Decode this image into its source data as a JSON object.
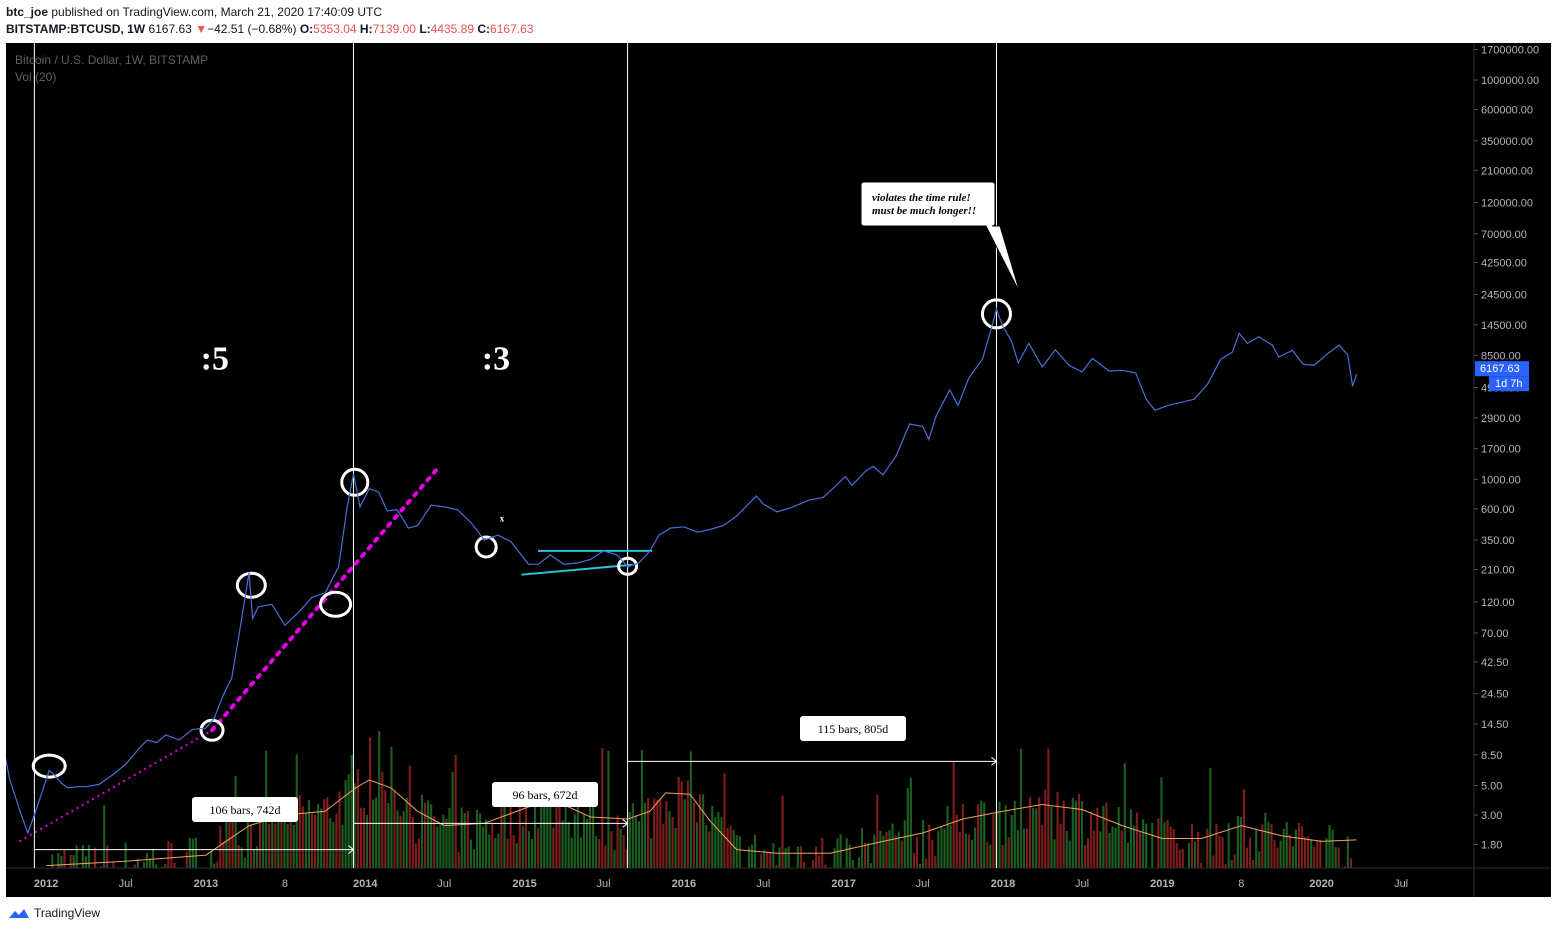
{
  "header": {
    "author": "btc_joe",
    "published": "published on TradingView.com, March 21, 2020 17:40:09 UTC",
    "symbol": "BITSTAMP:BTCUSD, 1W",
    "last": "6167.63",
    "change": "−42.51 (−0.68%)",
    "o_label": "O:",
    "o": "5353.04",
    "h_label": "H:",
    "h": "7139.00",
    "l_label": "L:",
    "l": "4435.89",
    "c_label": "C:",
    "c": "6167.63",
    "down_arrow": "▼"
  },
  "pane": {
    "title": "Bitcoin / U.S. Dollar, 1W, BITSTAMP",
    "vol_label": "Vol (20)"
  },
  "footer": {
    "brand": "TradingView"
  },
  "colors": {
    "price_line": "#4a6fd4",
    "volume_up": "#1b5e20",
    "volume_down": "#7f1d1d",
    "volume_ma": "#f0a060",
    "trend_dotted": "#e600e6",
    "channel": "#29c5d9",
    "annotation": "#ffffff",
    "price_tag": "#2962ff"
  },
  "chart_data": {
    "type": "line",
    "title": "Bitcoin / U.S. Dollar, 1W, BITSTAMP",
    "yscale": "log",
    "ylim": [
      1.2,
      1900000
    ],
    "xlim": [
      "2011-10-01",
      "2020-12-15"
    ],
    "y_ticks": [
      "1700000.00",
      "1000000.00",
      "600000.00",
      "350000.00",
      "210000.00",
      "120000.00",
      "70000.00",
      "42500.00",
      "24500.00",
      "14500.00",
      "8500.00",
      "4900.00",
      "2900.00",
      "1700.00",
      "1000.00",
      "600.00",
      "350.00",
      "210.00",
      "120.00",
      "70.00",
      "42.50",
      "24.50",
      "14.50",
      "8.50",
      "5.00",
      "3.00",
      "1.80"
    ],
    "x_ticks": [
      {
        "label": "2012",
        "date": "2012-01-01",
        "bold": true
      },
      {
        "label": "Jul",
        "date": "2012-07-01",
        "bold": false
      },
      {
        "label": "2013",
        "date": "2013-01-01",
        "bold": true
      },
      {
        "label": "8",
        "date": "2013-07-01",
        "bold": false
      },
      {
        "label": "2014",
        "date": "2014-01-01",
        "bold": true
      },
      {
        "label": "Jul",
        "date": "2014-07-01",
        "bold": false
      },
      {
        "label": "2015",
        "date": "2015-01-01",
        "bold": true
      },
      {
        "label": "Jul",
        "date": "2015-07-01",
        "bold": false
      },
      {
        "label": "2016",
        "date": "2016-01-01",
        "bold": true
      },
      {
        "label": "Jul",
        "date": "2016-07-01",
        "bold": false
      },
      {
        "label": "2017",
        "date": "2017-01-01",
        "bold": true
      },
      {
        "label": "Jul",
        "date": "2017-07-01",
        "bold": false
      },
      {
        "label": "2018",
        "date": "2018-01-01",
        "bold": true
      },
      {
        "label": "Jul",
        "date": "2018-07-01",
        "bold": false
      },
      {
        "label": "2019",
        "date": "2019-01-01",
        "bold": true
      },
      {
        "label": "8",
        "date": "2019-07-01",
        "bold": false
      },
      {
        "label": "2020",
        "date": "2020-01-01",
        "bold": true
      },
      {
        "label": "Jul",
        "date": "2020-07-01",
        "bold": false
      }
    ],
    "series": [
      {
        "points": [
          [
            "2011-09-20",
            11.5
          ],
          [
            "2011-10-10",
            5.5
          ],
          [
            "2011-11-05",
            3.0
          ],
          [
            "2011-11-20",
            2.2
          ],
          [
            "2011-12-05",
            3.0
          ],
          [
            "2011-12-20",
            4.2
          ],
          [
            "2012-01-08",
            6.5
          ],
          [
            "2012-01-20",
            6.0
          ],
          [
            "2012-02-05",
            5.2
          ],
          [
            "2012-02-20",
            4.8
          ],
          [
            "2012-03-10",
            4.9
          ],
          [
            "2012-04-01",
            4.9
          ],
          [
            "2012-05-01",
            5.1
          ],
          [
            "2012-06-01",
            6.0
          ],
          [
            "2012-07-01",
            7.2
          ],
          [
            "2012-08-01",
            9.5
          ],
          [
            "2012-08-20",
            11.0
          ],
          [
            "2012-09-10",
            10.5
          ],
          [
            "2012-10-01",
            12.0
          ],
          [
            "2012-11-01",
            11.0
          ],
          [
            "2012-12-01",
            13.2
          ],
          [
            "2013-01-01",
            13.5
          ],
          [
            "2013-01-20",
            16.0
          ],
          [
            "2013-02-10",
            24.0
          ],
          [
            "2013-03-01",
            32.0
          ],
          [
            "2013-03-20",
            75.0
          ],
          [
            "2013-04-10",
            200.0
          ],
          [
            "2013-04-18",
            90.0
          ],
          [
            "2013-05-01",
            110.0
          ],
          [
            "2013-06-01",
            115.0
          ],
          [
            "2013-07-01",
            80.0
          ],
          [
            "2013-08-01",
            100.0
          ],
          [
            "2013-09-01",
            130.0
          ],
          [
            "2013-10-01",
            140.0
          ],
          [
            "2013-11-01",
            220.0
          ],
          [
            "2013-11-20",
            600.0
          ],
          [
            "2013-12-05",
            1100.0
          ],
          [
            "2013-12-20",
            620.0
          ],
          [
            "2014-01-10",
            850.0
          ],
          [
            "2014-02-01",
            800.0
          ],
          [
            "2014-02-20",
            580.0
          ],
          [
            "2014-03-15",
            590.0
          ],
          [
            "2014-04-10",
            430.0
          ],
          [
            "2014-05-01",
            450.0
          ],
          [
            "2014-06-01",
            640.0
          ],
          [
            "2014-07-01",
            620.0
          ],
          [
            "2014-08-01",
            590.0
          ],
          [
            "2014-09-01",
            470.0
          ],
          [
            "2014-10-01",
            350.0
          ],
          [
            "2014-11-01",
            380.0
          ],
          [
            "2014-12-01",
            340.0
          ],
          [
            "2015-01-10",
            230.0
          ],
          [
            "2015-02-01",
            230.0
          ],
          [
            "2015-03-01",
            270.0
          ],
          [
            "2015-04-01",
            230.0
          ],
          [
            "2015-05-01",
            235.0
          ],
          [
            "2015-06-01",
            250.0
          ],
          [
            "2015-07-01",
            290.0
          ],
          [
            "2015-08-01",
            270.0
          ],
          [
            "2015-08-25",
            220.0
          ],
          [
            "2015-09-20",
            235.0
          ],
          [
            "2015-10-15",
            290.0
          ],
          [
            "2015-11-05",
            380.0
          ],
          [
            "2015-12-01",
            430.0
          ],
          [
            "2016-01-01",
            440.0
          ],
          [
            "2016-02-01",
            400.0
          ],
          [
            "2016-03-01",
            420.0
          ],
          [
            "2016-04-01",
            450.0
          ],
          [
            "2016-05-01",
            530.0
          ],
          [
            "2016-06-15",
            750.0
          ],
          [
            "2016-07-01",
            650.0
          ],
          [
            "2016-08-01",
            570.0
          ],
          [
            "2016-09-01",
            610.0
          ],
          [
            "2016-10-15",
            700.0
          ],
          [
            "2016-11-15",
            730.0
          ],
          [
            "2016-12-15",
            900.0
          ],
          [
            "2017-01-05",
            1050.0
          ],
          [
            "2017-01-20",
            900.0
          ],
          [
            "2017-02-20",
            1150.0
          ],
          [
            "2017-03-10",
            1250.0
          ],
          [
            "2017-04-01",
            1080.0
          ],
          [
            "2017-05-01",
            1500.0
          ],
          [
            "2017-06-01",
            2600.0
          ],
          [
            "2017-07-01",
            2500.0
          ],
          [
            "2017-07-15",
            2000.0
          ],
          [
            "2017-08-01",
            3000.0
          ],
          [
            "2017-09-01",
            4700.0
          ],
          [
            "2017-09-20",
            3600.0
          ],
          [
            "2017-10-15",
            5800.0
          ],
          [
            "2017-11-15",
            8000.0
          ],
          [
            "2017-12-05",
            13500.0
          ],
          [
            "2017-12-17",
            19000.0
          ],
          [
            "2018-01-01",
            14000.0
          ],
          [
            "2018-01-20",
            11000.0
          ],
          [
            "2018-02-05",
            7500.0
          ],
          [
            "2018-03-01",
            10500.0
          ],
          [
            "2018-04-01",
            7000.0
          ],
          [
            "2018-05-01",
            9400.0
          ],
          [
            "2018-06-01",
            7200.0
          ],
          [
            "2018-07-01",
            6400.0
          ],
          [
            "2018-07-25",
            8100.0
          ],
          [
            "2018-09-01",
            6500.0
          ],
          [
            "2018-10-01",
            6600.0
          ],
          [
            "2018-11-01",
            6300.0
          ],
          [
            "2018-11-25",
            4000.0
          ],
          [
            "2018-12-15",
            3300.0
          ],
          [
            "2019-01-15",
            3600.0
          ],
          [
            "2019-02-15",
            3800.0
          ],
          [
            "2019-03-15",
            4000.0
          ],
          [
            "2019-04-15",
            5200.0
          ],
          [
            "2019-05-15",
            8000.0
          ],
          [
            "2019-06-10",
            9000.0
          ],
          [
            "2019-06-26",
            12500.0
          ],
          [
            "2019-07-15",
            10500.0
          ],
          [
            "2019-08-10",
            11800.0
          ],
          [
            "2019-09-10",
            10200.0
          ],
          [
            "2019-09-25",
            8300.0
          ],
          [
            "2019-10-26",
            9300.0
          ],
          [
            "2019-11-20",
            7300.0
          ],
          [
            "2019-12-15",
            7200.0
          ],
          [
            "2020-01-15",
            8800.0
          ],
          [
            "2020-02-10",
            10200.0
          ],
          [
            "2020-03-01",
            8600.0
          ],
          [
            "2020-03-12",
            5000.0
          ],
          [
            "2020-03-21",
            6167.63
          ]
        ]
      }
    ],
    "volume": {
      "seed": 7,
      "ma_points": [
        [
          "2012-01-01",
          1.25
        ],
        [
          "2012-07-01",
          1.35
        ],
        [
          "2013-01-01",
          1.5
        ],
        [
          "2013-04-10",
          2.5
        ],
        [
          "2013-07-01",
          3.0
        ],
        [
          "2013-10-01",
          3.2
        ],
        [
          "2013-12-10",
          4.8
        ],
        [
          "2014-01-10",
          5.5
        ],
        [
          "2014-03-01",
          4.8
        ],
        [
          "2014-05-01",
          3.2
        ],
        [
          "2014-07-01",
          2.5
        ],
        [
          "2014-10-01",
          2.6
        ],
        [
          "2015-01-15",
          3.5
        ],
        [
          "2015-03-15",
          3.8
        ],
        [
          "2015-06-01",
          2.9
        ],
        [
          "2015-08-25",
          2.8
        ],
        [
          "2015-10-15",
          3.2
        ],
        [
          "2015-11-20",
          4.4
        ],
        [
          "2016-01-15",
          4.3
        ],
        [
          "2016-03-01",
          2.7
        ],
        [
          "2016-05-01",
          1.65
        ],
        [
          "2016-08-01",
          1.55
        ],
        [
          "2016-12-01",
          1.55
        ],
        [
          "2017-04-01",
          1.9
        ],
        [
          "2017-07-01",
          2.2
        ],
        [
          "2017-10-01",
          2.8
        ],
        [
          "2018-01-01",
          3.2
        ],
        [
          "2018-04-01",
          3.6
        ],
        [
          "2018-07-01",
          3.3
        ],
        [
          "2018-10-01",
          2.5
        ],
        [
          "2019-01-01",
          2.0
        ],
        [
          "2019-04-01",
          2.0
        ],
        [
          "2019-07-01",
          2.5
        ],
        [
          "2019-10-01",
          2.1
        ],
        [
          "2020-01-01",
          1.9
        ],
        [
          "2020-03-21",
          1.95
        ]
      ]
    },
    "annotations": {
      "ratio_left": ":5",
      "ratio_right": ":3",
      "measure_1": "106 bars, 742d",
      "measure_2": "96 bars, 672d",
      "measure_3": "115 bars, 805d",
      "note_line1": "violates the time rule!",
      "note_line2": "must be much longer!!",
      "x_mark": "x",
      "price_tag": "6167.63",
      "countdown": "1d 7h"
    }
  }
}
